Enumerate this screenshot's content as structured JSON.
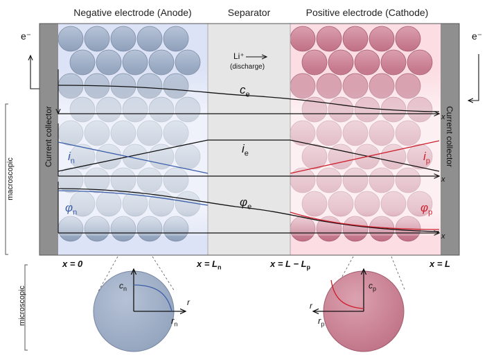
{
  "regions": {
    "anode_title": "Negative electrode (Anode)",
    "separator_title": "Separator",
    "cathode_title": "Positive electrode (Cathode)"
  },
  "collector_label": "Current collector",
  "electron_label": "e⁻",
  "ion_label": "Li⁺",
  "discharge_label": "(discharge)",
  "scale_labels": {
    "macro": "macroscopic",
    "micro": "microscopic"
  },
  "variables": {
    "ce": "c",
    "ce_sub": "e",
    "ie": "i",
    "ie_sub": "e",
    "phie": "φ",
    "phie_sub": "e",
    "in": "i",
    "in_sub": "n",
    "ip": "i",
    "ip_sub": "p",
    "phin": "φ",
    "phin_sub": "n",
    "phip": "φ",
    "phip_sub": "p",
    "axis_x": "x"
  },
  "positions": {
    "x0": "x = 0",
    "xLn_pre": "x = L",
    "xLn_sub": "n",
    "xLLp_pre": "x = L − L",
    "xLLp_sub": "p",
    "xL": "x = L"
  },
  "particles": {
    "anode": {
      "c": "c",
      "c_sub": "n",
      "r": "r",
      "rr": "r",
      "rr_sub": "n"
    },
    "cathode": {
      "c": "c",
      "c_sub": "p",
      "r": "r",
      "rr": "r",
      "rr_sub": "p"
    }
  },
  "colors": {
    "anode_fill": "#dde3f6",
    "separator_fill": "#e6e6e6",
    "cathode_fill": "#fbdde3",
    "collector": "#8f8f8f",
    "anode_particle": "#a9b8cf",
    "cathode_particle": "#cf8497",
    "anode_curve": "#3b5ea8",
    "cathode_curve": "#cc1f2c"
  }
}
